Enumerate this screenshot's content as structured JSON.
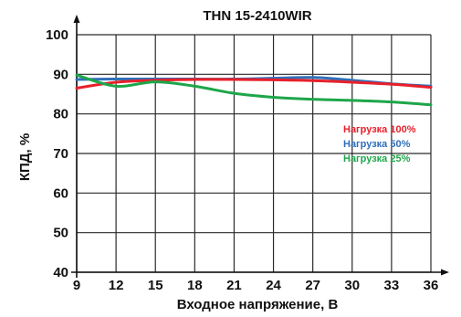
{
  "chart_data": {
    "type": "line",
    "title": "THN 15-2410WIR",
    "xlabel": "Входное напряжение, В",
    "ylabel": "КПД, %",
    "xlim": [
      9,
      36
    ],
    "ylim": [
      40,
      100
    ],
    "x_ticks": [
      9,
      12,
      15,
      18,
      21,
      24,
      27,
      30,
      33,
      36
    ],
    "y_ticks": [
      40,
      50,
      60,
      70,
      80,
      90,
      100
    ],
    "grid": true,
    "legend_position": "center-right",
    "series": [
      {
        "name": "Нагрузка 100%",
        "color": "#e8202a",
        "x": [
          9,
          12,
          15,
          18,
          21,
          24,
          27,
          30,
          33,
          36
        ],
        "y": [
          86.5,
          88.0,
          88.5,
          88.7,
          88.7,
          88.6,
          88.4,
          88.0,
          87.5,
          86.7
        ]
      },
      {
        "name": "Нагрузка 50%",
        "color": "#2f6fb8",
        "x": [
          9,
          12,
          15,
          18,
          21,
          24,
          27,
          30,
          33,
          36
        ],
        "y": [
          88.7,
          88.8,
          88.8,
          88.8,
          88.8,
          89.0,
          89.2,
          88.5,
          87.6,
          87.0
        ]
      },
      {
        "name": "Нагрузка 25%",
        "color": "#1ea64a",
        "x": [
          9,
          12,
          15,
          18,
          21,
          24,
          27,
          30,
          33,
          36
        ],
        "y": [
          89.8,
          87.0,
          88.1,
          87.0,
          85.2,
          84.2,
          83.7,
          83.4,
          83.0,
          82.3
        ]
      }
    ]
  }
}
